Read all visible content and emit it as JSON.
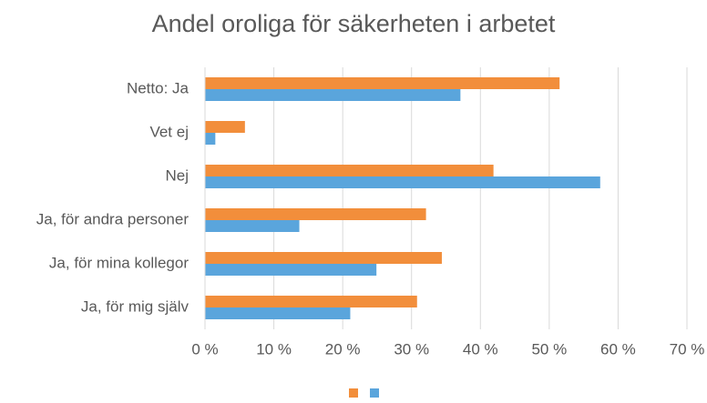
{
  "chart_data": {
    "type": "hbar",
    "title": "Andel oroliga för säkerheten i arbetet",
    "categories": [
      "Netto: Ja",
      "Vet ej",
      "Nej",
      "Ja, för andra personer",
      "Ja, för mina kollegor",
      "Ja, för mig själv"
    ],
    "series": [
      {
        "color": "#f28e3b",
        "values": [
          51.5,
          5.8,
          41.9,
          32.1,
          34.4,
          30.8
        ]
      },
      {
        "color": "#5aa5dc",
        "values": [
          37.1,
          1.5,
          57.4,
          13.7,
          24.9,
          21.1
        ]
      }
    ],
    "xlim": [
      0,
      70
    ],
    "xticks": [
      {
        "value": 0,
        "label": "0 %"
      },
      {
        "value": 10,
        "label": "10 %"
      },
      {
        "value": 20,
        "label": "20 %"
      },
      {
        "value": 30,
        "label": "30 %"
      },
      {
        "value": 40,
        "label": "40 %"
      },
      {
        "value": 50,
        "label": "50 %"
      },
      {
        "value": 60,
        "label": "60 %"
      },
      {
        "value": 70,
        "label": "70 %"
      }
    ],
    "grid": true
  }
}
